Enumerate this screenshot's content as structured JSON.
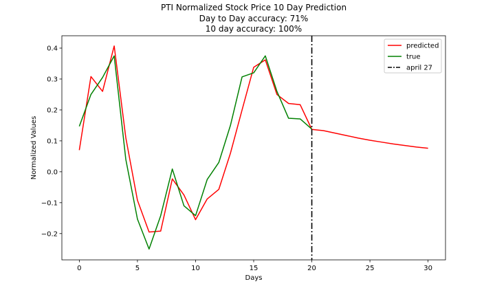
{
  "chart_data": {
    "type": "line",
    "title": "PTI Normalized Stock Price 10 Day Prediction",
    "subtitle_lines": [
      "Day to Day accuracy: 71%",
      "10 day accuracy: 100%"
    ],
    "xlabel": "Days",
    "ylabel": "Normalized Values",
    "xlim": [
      -1.5,
      31.5
    ],
    "ylim": [
      -0.285,
      0.44
    ],
    "xticks": [
      0,
      5,
      10,
      15,
      20,
      25,
      30
    ],
    "yticks": [
      -0.2,
      -0.1,
      0.0,
      0.1,
      0.2,
      0.3,
      0.4
    ],
    "ytick_labels": [
      "−0.2",
      "−0.1",
      "0.0",
      "0.1",
      "0.2",
      "0.3",
      "0.4"
    ],
    "grid": false,
    "legend_position": "top-right",
    "series": [
      {
        "name": "predicted",
        "color": "#ff0000",
        "style": "solid",
        "x": [
          0,
          1,
          2,
          3,
          4,
          5,
          6,
          7,
          8,
          9,
          10,
          11,
          12,
          13,
          14,
          15,
          16,
          17,
          18,
          19,
          20,
          21,
          22,
          23,
          24,
          25,
          26,
          27,
          28,
          29,
          30
        ],
        "values": [
          0.07,
          0.308,
          0.26,
          0.407,
          0.11,
          -0.092,
          -0.195,
          -0.192,
          -0.023,
          -0.075,
          -0.155,
          -0.088,
          -0.057,
          0.06,
          0.2,
          0.338,
          0.362,
          0.25,
          0.221,
          0.217,
          0.137,
          0.133,
          0.125,
          0.117,
          0.109,
          0.102,
          0.096,
          0.09,
          0.085,
          0.08,
          0.076
        ]
      },
      {
        "name": "true",
        "color": "#008000",
        "style": "solid",
        "x": [
          0,
          1,
          2,
          3,
          4,
          5,
          6,
          7,
          8,
          9,
          10,
          11,
          12,
          13,
          14,
          15,
          16,
          17,
          18,
          19,
          20
        ],
        "values": [
          0.147,
          0.25,
          0.305,
          0.375,
          0.04,
          -0.153,
          -0.25,
          -0.142,
          0.009,
          -0.11,
          -0.142,
          -0.025,
          0.03,
          0.15,
          0.307,
          0.32,
          0.375,
          0.26,
          0.173,
          0.171,
          0.138
        ]
      },
      {
        "name": "april 27",
        "color": "#000000",
        "style": "dashdot",
        "vline_x": 20
      }
    ]
  }
}
